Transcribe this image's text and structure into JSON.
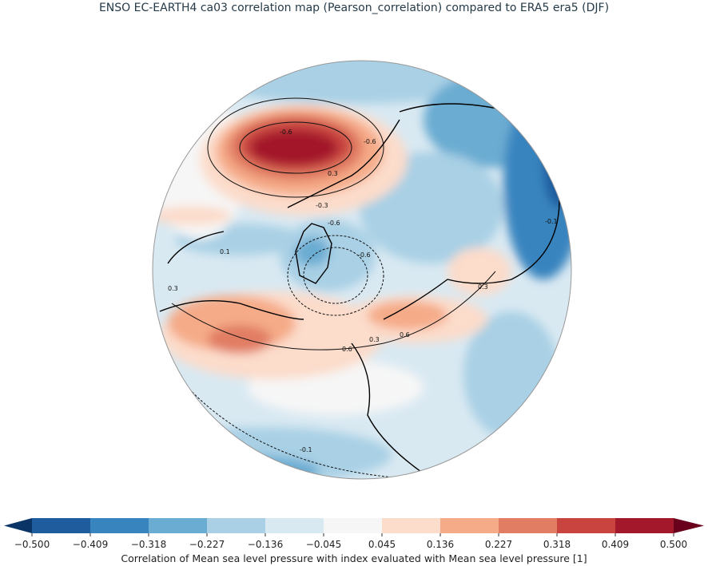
{
  "title": "ENSO EC-EARTH4 ca03 correlation map (Pearson_correlation) compared to ERA5 era5 (DJF)",
  "colorbar": {
    "label": "Correlation of Mean sea level pressure with index evaluated with Mean sea level pressure [1]",
    "ticks": [
      "−0.500",
      "−0.409",
      "−0.318",
      "−0.227",
      "−0.136",
      "−0.045",
      "0.045",
      "0.136",
      "0.227",
      "0.318",
      "0.409",
      "0.500"
    ],
    "colors": [
      "#1f5c9e",
      "#3884bf",
      "#6aacd2",
      "#a9d0e5",
      "#d9e9f2",
      "#f6f6f6",
      "#fcdccb",
      "#f5ab88",
      "#e17d63",
      "#c9443f",
      "#a3192b"
    ],
    "under_color": "#0a3466",
    "over_color": "#69001c",
    "extend": "both"
  },
  "map": {
    "projection": "north-polar-stereographic",
    "ocean_background": "#d9e9f2",
    "contour_labels": [
      "-0.6",
      "-0.6",
      "0.3",
      "-0.3",
      "-0.6",
      "-0.6",
      "0.3",
      "0.6",
      "0.3",
      "0.6",
      "-0.1",
      "0.3",
      "-0.1",
      "0.1"
    ]
  }
}
